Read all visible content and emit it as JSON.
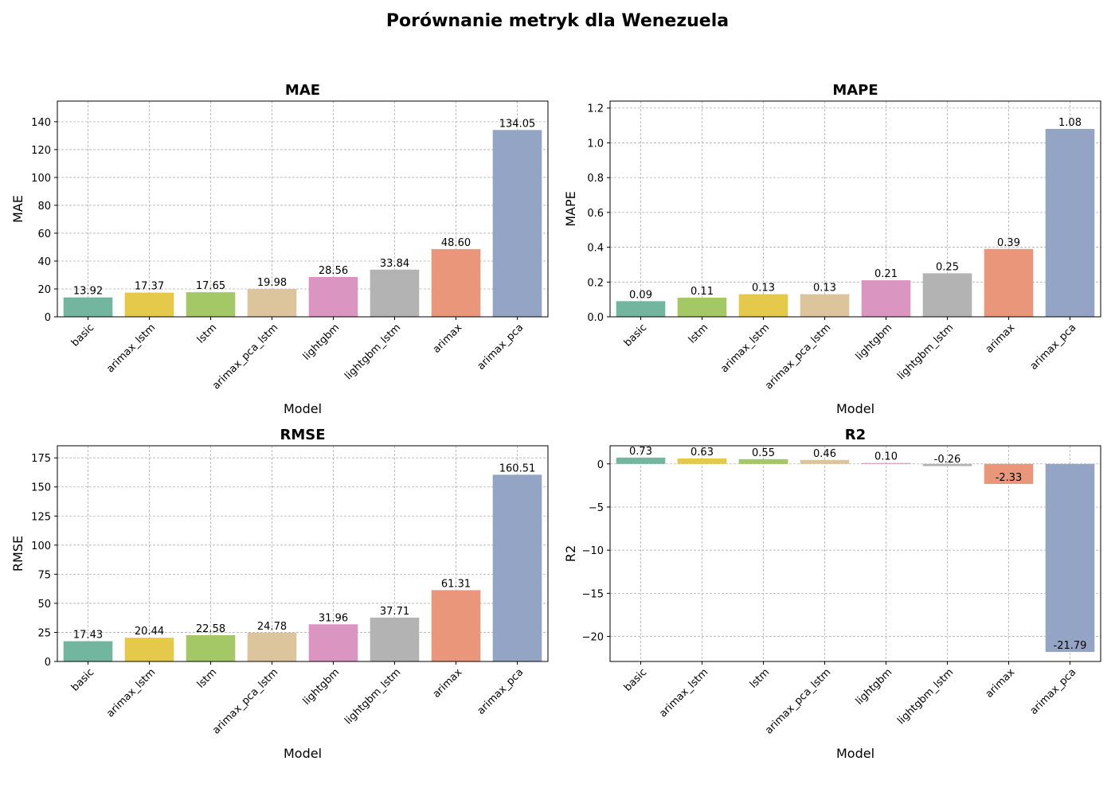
{
  "figure_title": "Porównanie metryk dla Wenezuela",
  "chart_data": [
    {
      "type": "bar",
      "title": "MAE",
      "xlabel": "Model",
      "ylabel": "MAE",
      "categories": [
        "basic",
        "arimax_lstm",
        "lstm",
        "arimax_pca_lstm",
        "lightgbm",
        "lightgbm_lstm",
        "arimax",
        "arimax_pca"
      ],
      "values": [
        13.92,
        17.37,
        17.65,
        19.98,
        28.56,
        33.84,
        48.6,
        134.05
      ],
      "value_labels": [
        "13.92",
        "17.37",
        "17.65",
        "19.98",
        "28.56",
        "33.84",
        "48.60",
        "134.05"
      ],
      "ylim": [
        0,
        154.8
      ],
      "yticks": [
        0,
        20,
        40,
        60,
        80,
        100,
        120,
        140
      ],
      "ytick_labels": [
        "0",
        "20",
        "40",
        "60",
        "80",
        "100",
        "120",
        "140"
      ],
      "grid": true,
      "colors": [
        "#72b6a0",
        "#e5c94a",
        "#a3c865",
        "#dcc49c",
        "#da95c0",
        "#b3b3b3",
        "#e9967a",
        "#94a4c4"
      ]
    },
    {
      "type": "bar",
      "title": "MAPE",
      "xlabel": "Model",
      "ylabel": "MAPE",
      "categories": [
        "basic",
        "lstm",
        "arimax_lstm",
        "arimax_pca_lstm",
        "lightgbm",
        "lightgbm_lstm",
        "arimax",
        "arimax_pca"
      ],
      "values": [
        0.09,
        0.11,
        0.13,
        0.13,
        0.21,
        0.25,
        0.39,
        1.08
      ],
      "value_labels": [
        "0.09",
        "0.11",
        "0.13",
        "0.13",
        "0.21",
        "0.25",
        "0.39",
        "1.08"
      ],
      "ylim": [
        0,
        1.24
      ],
      "yticks": [
        0,
        0.2,
        0.4,
        0.6,
        0.8,
        1.0,
        1.2
      ],
      "ytick_labels": [
        "0.0",
        "0.2",
        "0.4",
        "0.6",
        "0.8",
        "1.0",
        "1.2"
      ],
      "grid": true,
      "colors": [
        "#72b6a0",
        "#a3c865",
        "#e5c94a",
        "#dcc49c",
        "#da95c0",
        "#b3b3b3",
        "#e9967a",
        "#94a4c4"
      ]
    },
    {
      "type": "bar",
      "title": "RMSE",
      "xlabel": "Model",
      "ylabel": "RMSE",
      "categories": [
        "basic",
        "arimax_lstm",
        "lstm",
        "arimax_pca_lstm",
        "lightgbm",
        "lightgbm_lstm",
        "arimax",
        "arimax_pca"
      ],
      "values": [
        17.43,
        20.44,
        22.58,
        24.78,
        31.96,
        37.71,
        61.31,
        160.51
      ],
      "value_labels": [
        "17.43",
        "20.44",
        "22.58",
        "24.78",
        "31.96",
        "37.71",
        "61.31",
        "160.51"
      ],
      "ylim": [
        0,
        185.4
      ],
      "yticks": [
        0,
        25,
        50,
        75,
        100,
        125,
        150,
        175
      ],
      "ytick_labels": [
        "0",
        "25",
        "50",
        "75",
        "100",
        "125",
        "150",
        "175"
      ],
      "grid": true,
      "colors": [
        "#72b6a0",
        "#e5c94a",
        "#a3c865",
        "#dcc49c",
        "#da95c0",
        "#b3b3b3",
        "#e9967a",
        "#94a4c4"
      ]
    },
    {
      "type": "bar",
      "title": "R2",
      "xlabel": "Model",
      "ylabel": "R2",
      "categories": [
        "basic",
        "arimax_lstm",
        "lstm",
        "arimax_pca_lstm",
        "lightgbm",
        "lightgbm_lstm",
        "arimax",
        "arimax_pca"
      ],
      "values": [
        0.73,
        0.63,
        0.55,
        0.46,
        0.1,
        -0.26,
        -2.33,
        -21.79
      ],
      "value_labels": [
        "0.73",
        "0.63",
        "0.55",
        "0.46",
        "0.10",
        "-0.26",
        "-2.33",
        "-21.79"
      ],
      "ylim": [
        -22.9,
        2.1
      ],
      "yticks": [
        0,
        -5,
        -10,
        -15,
        -20
      ],
      "ytick_labels": [
        "0",
        "−5",
        "−10",
        "−15",
        "−20"
      ],
      "grid": true,
      "colors": [
        "#72b6a0",
        "#e5c94a",
        "#a3c865",
        "#dcc49c",
        "#da95c0",
        "#b3b3b3",
        "#e9967a",
        "#94a4c4"
      ]
    }
  ]
}
